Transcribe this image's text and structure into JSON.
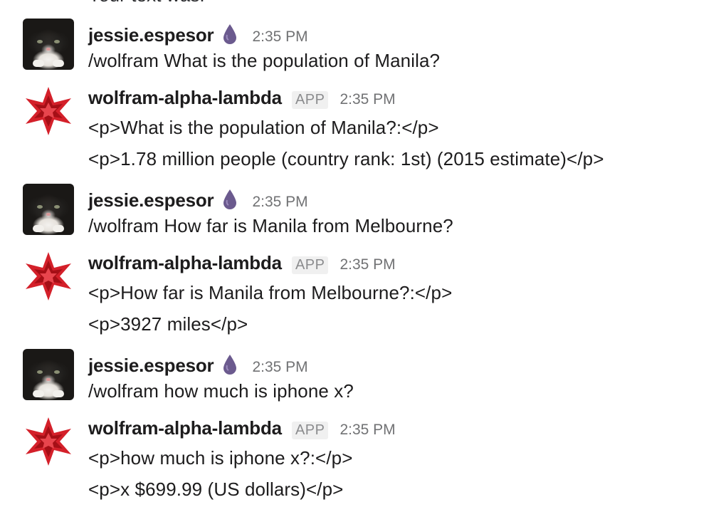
{
  "cutoff_text": "Your text was:",
  "messages": [
    {
      "author": "jessie.espesor",
      "time": "2:35 PM",
      "lines": [
        "/wolfram What is the population of Manila?"
      ]
    },
    {
      "author": "wolfram-alpha-lambda",
      "badge": "APP",
      "time": "2:35 PM",
      "lines": [
        "<p>What is the population of Manila?:</p>",
        "<p>1.78 million people  (country rank: 1st)  (2015 estimate)</p>"
      ]
    },
    {
      "author": "jessie.espesor",
      "time": "2:35 PM",
      "lines": [
        "/wolfram How far is Manila from Melbourne?"
      ]
    },
    {
      "author": "wolfram-alpha-lambda",
      "badge": "APP",
      "time": "2:35 PM",
      "lines": [
        "<p>How far is Manila from Melbourne?:</p>",
        "<p>3927 miles</p>"
      ]
    },
    {
      "author": "jessie.espesor",
      "time": "2:35 PM",
      "lines": [
        "/wolfram how much is iphone x?"
      ]
    },
    {
      "author": "wolfram-alpha-lambda",
      "badge": "APP",
      "time": "2:35 PM",
      "lines": [
        "<p>how much is iphone x?:</p>",
        "<p>x $699.99  (US dollars)</p>"
      ]
    }
  ],
  "colors": {
    "drop_icon": "#6b5a8e",
    "wolfram_red": "#d4202a",
    "timestamp": "#717274",
    "badge_bg": "#f0f0f0"
  },
  "icons": {
    "status": "drop-icon",
    "bot_avatar": "wolfram-spikey-icon",
    "user_avatar": "cat-avatar"
  }
}
